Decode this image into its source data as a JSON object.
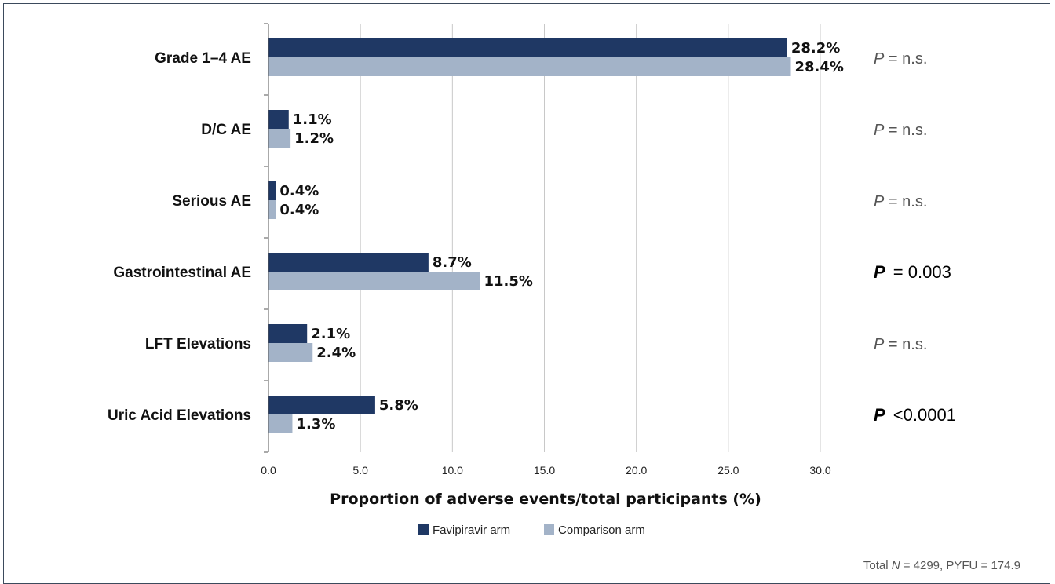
{
  "chart_data": {
    "type": "bar",
    "orientation": "horizontal",
    "categories": [
      "Grade 1–4 AE",
      "D/C AE",
      "Serious AE",
      "Gastrointestinal AE",
      "LFT Elevations",
      "Uric Acid Elevations"
    ],
    "series": [
      {
        "name": "Favipiravir arm",
        "color": "#1f3864",
        "values": [
          28.2,
          1.1,
          0.4,
          8.7,
          2.1,
          5.8
        ],
        "labels": [
          "28.2%",
          "1.1%",
          "0.4%",
          "8.7%",
          "2.1%",
          "5.8%"
        ]
      },
      {
        "name": "Comparison arm",
        "color": "#a3b3c8",
        "values": [
          28.4,
          1.2,
          0.4,
          11.5,
          2.4,
          1.3
        ],
        "labels": [
          "28.4%",
          "1.2%",
          "0.4%",
          "11.5%",
          "2.4%",
          "1.3%"
        ]
      }
    ],
    "p_values": [
      {
        "symbol": "P",
        "text": "= n.s.",
        "significant": false
      },
      {
        "symbol": "P",
        "text": "= n.s.",
        "significant": false
      },
      {
        "symbol": "P",
        "text": "= n.s.",
        "significant": false
      },
      {
        "symbol": "P",
        "text": "= 0.003",
        "significant": true
      },
      {
        "symbol": "P",
        "text": "= n.s.",
        "significant": false
      },
      {
        "symbol": "P",
        "text": "<0.0001",
        "significant": true
      }
    ],
    "xticks": [
      "0.0",
      "5.0",
      "10.0",
      "15.0",
      "20.0",
      "25.0",
      "30.0"
    ],
    "xlim": [
      0,
      30
    ],
    "xlabel": "Proportion of adverse events/total participants (%)",
    "grid": "vertical",
    "legend_position": "bottom-center",
    "footnote": {
      "prefix": "Total ",
      "n_symbol": "N",
      "suffix": " = 4299, PYFU = 174.9"
    }
  }
}
